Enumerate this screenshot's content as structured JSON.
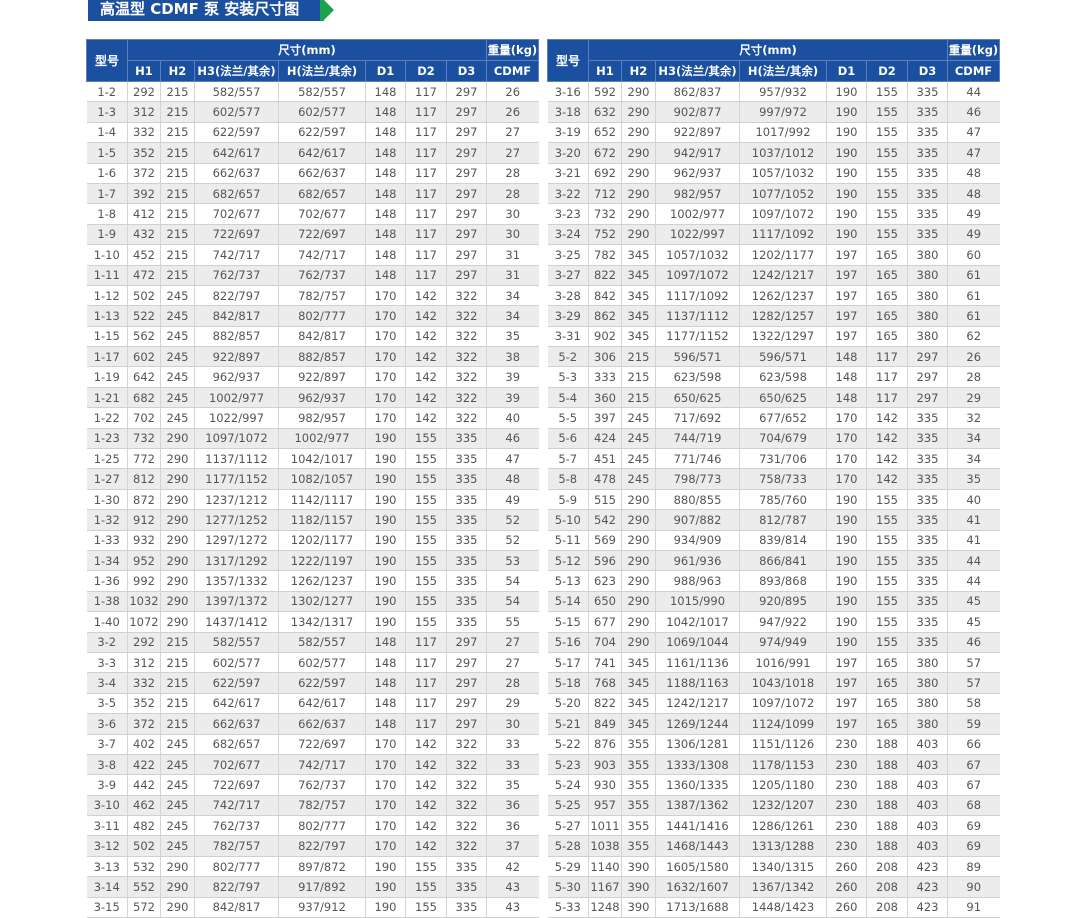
{
  "title": "高温型 CDMF 泵 安装尺寸图",
  "colors": {
    "header": "#1b4f9f",
    "accent": "#1aa34a",
    "alt_row": "#ececec"
  },
  "headers": {
    "model": "型号",
    "dimensions": "尺寸(mm)",
    "weight": "重量(kg)",
    "columns": [
      "H1",
      "H2",
      "H3(法兰/其余)",
      "H(法兰/其余)",
      "D1",
      "D2",
      "D3",
      "CDMF"
    ]
  },
  "tables": [
    {
      "rows": [
        [
          "1-2",
          "292",
          "215",
          "582/557",
          "582/557",
          "148",
          "117",
          "297",
          "26"
        ],
        [
          "1-3",
          "312",
          "215",
          "602/577",
          "602/577",
          "148",
          "117",
          "297",
          "26"
        ],
        [
          "1-4",
          "332",
          "215",
          "622/597",
          "622/597",
          "148",
          "117",
          "297",
          "27"
        ],
        [
          "1-5",
          "352",
          "215",
          "642/617",
          "642/617",
          "148",
          "117",
          "297",
          "27"
        ],
        [
          "1-6",
          "372",
          "215",
          "662/637",
          "662/637",
          "148",
          "117",
          "297",
          "28"
        ],
        [
          "1-7",
          "392",
          "215",
          "682/657",
          "682/657",
          "148",
          "117",
          "297",
          "28"
        ],
        [
          "1-8",
          "412",
          "215",
          "702/677",
          "702/677",
          "148",
          "117",
          "297",
          "30"
        ],
        [
          "1-9",
          "432",
          "215",
          "722/697",
          "722/697",
          "148",
          "117",
          "297",
          "30"
        ],
        [
          "1-10",
          "452",
          "215",
          "742/717",
          "742/717",
          "148",
          "117",
          "297",
          "31"
        ],
        [
          "1-11",
          "472",
          "215",
          "762/737",
          "762/737",
          "148",
          "117",
          "297",
          "31"
        ],
        [
          "1-12",
          "502",
          "245",
          "822/797",
          "782/757",
          "170",
          "142",
          "322",
          "34"
        ],
        [
          "1-13",
          "522",
          "245",
          "842/817",
          "802/777",
          "170",
          "142",
          "322",
          "34"
        ],
        [
          "1-15",
          "562",
          "245",
          "882/857",
          "842/817",
          "170",
          "142",
          "322",
          "35"
        ],
        [
          "1-17",
          "602",
          "245",
          "922/897",
          "882/857",
          "170",
          "142",
          "322",
          "38"
        ],
        [
          "1-19",
          "642",
          "245",
          "962/937",
          "922/897",
          "170",
          "142",
          "322",
          "39"
        ],
        [
          "1-21",
          "682",
          "245",
          "1002/977",
          "962/937",
          "170",
          "142",
          "322",
          "39"
        ],
        [
          "1-22",
          "702",
          "245",
          "1022/997",
          "982/957",
          "170",
          "142",
          "322",
          "40"
        ],
        [
          "1-23",
          "732",
          "290",
          "1097/1072",
          "1002/977",
          "190",
          "155",
          "335",
          "46"
        ],
        [
          "1-25",
          "772",
          "290",
          "1137/1112",
          "1042/1017",
          "190",
          "155",
          "335",
          "47"
        ],
        [
          "1-27",
          "812",
          "290",
          "1177/1152",
          "1082/1057",
          "190",
          "155",
          "335",
          "48"
        ],
        [
          "1-30",
          "872",
          "290",
          "1237/1212",
          "1142/1117",
          "190",
          "155",
          "335",
          "49"
        ],
        [
          "1-32",
          "912",
          "290",
          "1277/1252",
          "1182/1157",
          "190",
          "155",
          "335",
          "52"
        ],
        [
          "1-33",
          "932",
          "290",
          "1297/1272",
          "1202/1177",
          "190",
          "155",
          "335",
          "52"
        ],
        [
          "1-34",
          "952",
          "290",
          "1317/1292",
          "1222/1197",
          "190",
          "155",
          "335",
          "53"
        ],
        [
          "1-36",
          "992",
          "290",
          "1357/1332",
          "1262/1237",
          "190",
          "155",
          "335",
          "54"
        ],
        [
          "1-38",
          "1032",
          "290",
          "1397/1372",
          "1302/1277",
          "190",
          "155",
          "335",
          "54"
        ],
        [
          "1-40",
          "1072",
          "290",
          "1437/1412",
          "1342/1317",
          "190",
          "155",
          "335",
          "55"
        ],
        [
          "3-2",
          "292",
          "215",
          "582/557",
          "582/557",
          "148",
          "117",
          "297",
          "27"
        ],
        [
          "3-3",
          "312",
          "215",
          "602/577",
          "602/577",
          "148",
          "117",
          "297",
          "27"
        ],
        [
          "3-4",
          "332",
          "215",
          "622/597",
          "622/597",
          "148",
          "117",
          "297",
          "28"
        ],
        [
          "3-5",
          "352",
          "215",
          "642/617",
          "642/617",
          "148",
          "117",
          "297",
          "29"
        ],
        [
          "3-6",
          "372",
          "215",
          "662/637",
          "662/637",
          "148",
          "117",
          "297",
          "30"
        ],
        [
          "3-7",
          "402",
          "245",
          "682/657",
          "722/697",
          "170",
          "142",
          "322",
          "33"
        ],
        [
          "3-8",
          "422",
          "245",
          "702/677",
          "742/717",
          "170",
          "142",
          "322",
          "33"
        ],
        [
          "3-9",
          "442",
          "245",
          "722/697",
          "762/737",
          "170",
          "142",
          "322",
          "35"
        ],
        [
          "3-10",
          "462",
          "245",
          "742/717",
          "782/757",
          "170",
          "142",
          "322",
          "36"
        ],
        [
          "3-11",
          "482",
          "245",
          "762/737",
          "802/777",
          "170",
          "142",
          "322",
          "36"
        ],
        [
          "3-12",
          "502",
          "245",
          "782/757",
          "822/797",
          "170",
          "142",
          "322",
          "37"
        ],
        [
          "3-13",
          "532",
          "290",
          "802/777",
          "897/872",
          "190",
          "155",
          "335",
          "42"
        ],
        [
          "3-14",
          "552",
          "290",
          "822/797",
          "917/892",
          "190",
          "155",
          "335",
          "43"
        ],
        [
          "3-15",
          "572",
          "290",
          "842/817",
          "937/912",
          "190",
          "155",
          "335",
          "43"
        ]
      ]
    },
    {
      "rows": [
        [
          "3-16",
          "592",
          "290",
          "862/837",
          "957/932",
          "190",
          "155",
          "335",
          "44"
        ],
        [
          "3-18",
          "632",
          "290",
          "902/877",
          "997/972",
          "190",
          "155",
          "335",
          "46"
        ],
        [
          "3-19",
          "652",
          "290",
          "922/897",
          "1017/992",
          "190",
          "155",
          "335",
          "47"
        ],
        [
          "3-20",
          "672",
          "290",
          "942/917",
          "1037/1012",
          "190",
          "155",
          "335",
          "47"
        ],
        [
          "3-21",
          "692",
          "290",
          "962/937",
          "1057/1032",
          "190",
          "155",
          "335",
          "48"
        ],
        [
          "3-22",
          "712",
          "290",
          "982/957",
          "1077/1052",
          "190",
          "155",
          "335",
          "48"
        ],
        [
          "3-23",
          "732",
          "290",
          "1002/977",
          "1097/1072",
          "190",
          "155",
          "335",
          "49"
        ],
        [
          "3-24",
          "752",
          "290",
          "1022/997",
          "1117/1092",
          "190",
          "155",
          "335",
          "49"
        ],
        [
          "3-25",
          "782",
          "345",
          "1057/1032",
          "1202/1177",
          "197",
          "165",
          "380",
          "60"
        ],
        [
          "3-27",
          "822",
          "345",
          "1097/1072",
          "1242/1217",
          "197",
          "165",
          "380",
          "61"
        ],
        [
          "3-28",
          "842",
          "345",
          "1117/1092",
          "1262/1237",
          "197",
          "165",
          "380",
          "61"
        ],
        [
          "3-29",
          "862",
          "345",
          "1137/1112",
          "1282/1257",
          "197",
          "165",
          "380",
          "61"
        ],
        [
          "3-31",
          "902",
          "345",
          "1177/1152",
          "1322/1297",
          "197",
          "165",
          "380",
          "62"
        ],
        [
          "5-2",
          "306",
          "215",
          "596/571",
          "596/571",
          "148",
          "117",
          "297",
          "26"
        ],
        [
          "5-3",
          "333",
          "215",
          "623/598",
          "623/598",
          "148",
          "117",
          "297",
          "28"
        ],
        [
          "5-4",
          "360",
          "215",
          "650/625",
          "650/625",
          "148",
          "117",
          "297",
          "29"
        ],
        [
          "5-5",
          "397",
          "245",
          "717/692",
          "677/652",
          "170",
          "142",
          "335",
          "32"
        ],
        [
          "5-6",
          "424",
          "245",
          "744/719",
          "704/679",
          "170",
          "142",
          "335",
          "34"
        ],
        [
          "5-7",
          "451",
          "245",
          "771/746",
          "731/706",
          "170",
          "142",
          "335",
          "34"
        ],
        [
          "5-8",
          "478",
          "245",
          "798/773",
          "758/733",
          "170",
          "142",
          "335",
          "35"
        ],
        [
          "5-9",
          "515",
          "290",
          "880/855",
          "785/760",
          "190",
          "155",
          "335",
          "40"
        ],
        [
          "5-10",
          "542",
          "290",
          "907/882",
          "812/787",
          "190",
          "155",
          "335",
          "41"
        ],
        [
          "5-11",
          "569",
          "290",
          "934/909",
          "839/814",
          "190",
          "155",
          "335",
          "41"
        ],
        [
          "5-12",
          "596",
          "290",
          "961/936",
          "866/841",
          "190",
          "155",
          "335",
          "44"
        ],
        [
          "5-13",
          "623",
          "290",
          "988/963",
          "893/868",
          "190",
          "155",
          "335",
          "44"
        ],
        [
          "5-14",
          "650",
          "290",
          "1015/990",
          "920/895",
          "190",
          "155",
          "335",
          "45"
        ],
        [
          "5-15",
          "677",
          "290",
          "1042/1017",
          "947/922",
          "190",
          "155",
          "335",
          "45"
        ],
        [
          "5-16",
          "704",
          "290",
          "1069/1044",
          "974/949",
          "190",
          "155",
          "335",
          "46"
        ],
        [
          "5-17",
          "741",
          "345",
          "1161/1136",
          "1016/991",
          "197",
          "165",
          "380",
          "57"
        ],
        [
          "5-18",
          "768",
          "345",
          "1188/1163",
          "1043/1018",
          "197",
          "165",
          "380",
          "57"
        ],
        [
          "5-20",
          "822",
          "345",
          "1242/1217",
          "1097/1072",
          "197",
          "165",
          "380",
          "58"
        ],
        [
          "5-21",
          "849",
          "345",
          "1269/1244",
          "1124/1099",
          "197",
          "165",
          "380",
          "59"
        ],
        [
          "5-22",
          "876",
          "355",
          "1306/1281",
          "1151/1126",
          "230",
          "188",
          "403",
          "66"
        ],
        [
          "5-23",
          "903",
          "355",
          "1333/1308",
          "1178/1153",
          "230",
          "188",
          "403",
          "67"
        ],
        [
          "5-24",
          "930",
          "355",
          "1360/1335",
          "1205/1180",
          "230",
          "188",
          "403",
          "67"
        ],
        [
          "5-25",
          "957",
          "355",
          "1387/1362",
          "1232/1207",
          "230",
          "188",
          "403",
          "68"
        ],
        [
          "5-27",
          "1011",
          "355",
          "1441/1416",
          "1286/1261",
          "230",
          "188",
          "403",
          "69"
        ],
        [
          "5-28",
          "1038",
          "355",
          "1468/1443",
          "1313/1288",
          "230",
          "188",
          "403",
          "69"
        ],
        [
          "5-29",
          "1140",
          "390",
          "1605/1580",
          "1340/1315",
          "260",
          "208",
          "423",
          "89"
        ],
        [
          "5-30",
          "1167",
          "390",
          "1632/1607",
          "1367/1342",
          "260",
          "208",
          "423",
          "90"
        ],
        [
          "5-33",
          "1248",
          "390",
          "1713/1688",
          "1448/1423",
          "260",
          "208",
          "423",
          "91"
        ]
      ]
    }
  ]
}
